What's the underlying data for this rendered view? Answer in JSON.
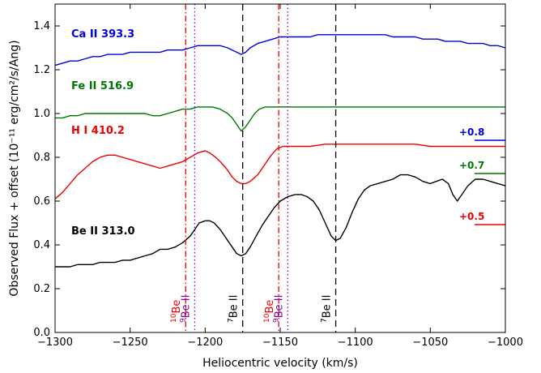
{
  "chart_data": {
    "type": "line",
    "xlabel": "Heliocentric velocity (km/s)",
    "ylabel": "Observed Flux + offset (10⁻¹¹ erg/cm²/s/Ang)",
    "xlim": [
      -1300,
      -1000
    ],
    "ylim": [
      0.0,
      1.5
    ],
    "x_ticks": [
      -1300,
      -1250,
      -1200,
      -1150,
      -1100,
      -1050,
      -1000
    ],
    "x_tick_labels": [
      "−1300",
      "−1250",
      "−1200",
      "−1150",
      "−1100",
      "−1050",
      "−1000"
    ],
    "y_ticks": [
      0.0,
      0.2,
      0.4,
      0.6,
      0.8,
      1.0,
      1.2,
      1.4
    ],
    "y_tick_labels": [
      "0.0",
      "0.2",
      "0.4",
      "0.6",
      "0.8",
      "1.0",
      "1.2",
      "1.4"
    ],
    "grid": false,
    "series": [
      {
        "name": "Ca II 393.3",
        "color": "#0000dd",
        "offset_label": "+0.8",
        "points": [
          [
            -1300,
            1.22
          ],
          [
            -1295,
            1.23
          ],
          [
            -1290,
            1.24
          ],
          [
            -1285,
            1.24
          ],
          [
            -1280,
            1.25
          ],
          [
            -1275,
            1.26
          ],
          [
            -1270,
            1.26
          ],
          [
            -1265,
            1.27
          ],
          [
            -1260,
            1.27
          ],
          [
            -1255,
            1.27
          ],
          [
            -1250,
            1.28
          ],
          [
            -1245,
            1.28
          ],
          [
            -1240,
            1.28
          ],
          [
            -1235,
            1.28
          ],
          [
            -1230,
            1.28
          ],
          [
            -1225,
            1.29
          ],
          [
            -1220,
            1.29
          ],
          [
            -1215,
            1.29
          ],
          [
            -1210,
            1.3
          ],
          [
            -1205,
            1.31
          ],
          [
            -1200,
            1.31
          ],
          [
            -1195,
            1.31
          ],
          [
            -1190,
            1.31
          ],
          [
            -1185,
            1.3
          ],
          [
            -1182,
            1.29
          ],
          [
            -1179,
            1.28
          ],
          [
            -1176,
            1.27
          ],
          [
            -1173,
            1.28
          ],
          [
            -1170,
            1.3
          ],
          [
            -1165,
            1.32
          ],
          [
            -1160,
            1.33
          ],
          [
            -1155,
            1.34
          ],
          [
            -1150,
            1.35
          ],
          [
            -1145,
            1.35
          ],
          [
            -1140,
            1.35
          ],
          [
            -1135,
            1.35
          ],
          [
            -1130,
            1.35
          ],
          [
            -1125,
            1.36
          ],
          [
            -1120,
            1.36
          ],
          [
            -1115,
            1.36
          ],
          [
            -1110,
            1.36
          ],
          [
            -1105,
            1.36
          ],
          [
            -1100,
            1.36
          ],
          [
            -1095,
            1.36
          ],
          [
            -1090,
            1.36
          ],
          [
            -1085,
            1.36
          ],
          [
            -1080,
            1.36
          ],
          [
            -1075,
            1.35
          ],
          [
            -1070,
            1.35
          ],
          [
            -1065,
            1.35
          ],
          [
            -1060,
            1.35
          ],
          [
            -1055,
            1.34
          ],
          [
            -1050,
            1.34
          ],
          [
            -1045,
            1.34
          ],
          [
            -1040,
            1.33
          ],
          [
            -1035,
            1.33
          ],
          [
            -1030,
            1.33
          ],
          [
            -1025,
            1.32
          ],
          [
            -1020,
            1.32
          ],
          [
            -1015,
            1.32
          ],
          [
            -1010,
            1.31
          ],
          [
            -1005,
            1.31
          ],
          [
            -1000,
            1.3
          ]
        ]
      },
      {
        "name": "Fe II 516.9",
        "color": "#007700",
        "offset_label": "+0.7",
        "points": [
          [
            -1300,
            0.98
          ],
          [
            -1295,
            0.98
          ],
          [
            -1290,
            0.99
          ],
          [
            -1285,
            0.99
          ],
          [
            -1280,
            1.0
          ],
          [
            -1275,
            1.0
          ],
          [
            -1270,
            1.0
          ],
          [
            -1265,
            1.0
          ],
          [
            -1260,
            1.0
          ],
          [
            -1255,
            1.0
          ],
          [
            -1250,
            1.0
          ],
          [
            -1245,
            1.0
          ],
          [
            -1240,
            1.0
          ],
          [
            -1235,
            0.99
          ],
          [
            -1230,
            0.99
          ],
          [
            -1225,
            1.0
          ],
          [
            -1220,
            1.01
          ],
          [
            -1215,
            1.02
          ],
          [
            -1210,
            1.02
          ],
          [
            -1205,
            1.03
          ],
          [
            -1200,
            1.03
          ],
          [
            -1195,
            1.03
          ],
          [
            -1190,
            1.02
          ],
          [
            -1185,
            1.0
          ],
          [
            -1182,
            0.98
          ],
          [
            -1179,
            0.95
          ],
          [
            -1176,
            0.92
          ],
          [
            -1173,
            0.94
          ],
          [
            -1170,
            0.97
          ],
          [
            -1167,
            1.0
          ],
          [
            -1164,
            1.02
          ],
          [
            -1160,
            1.03
          ],
          [
            -1155,
            1.03
          ],
          [
            -1150,
            1.03
          ],
          [
            -1140,
            1.03
          ],
          [
            -1130,
            1.03
          ],
          [
            -1120,
            1.03
          ],
          [
            -1110,
            1.03
          ],
          [
            -1100,
            1.03
          ],
          [
            -1090,
            1.03
          ],
          [
            -1080,
            1.03
          ],
          [
            -1070,
            1.03
          ],
          [
            -1060,
            1.03
          ],
          [
            -1050,
            1.03
          ],
          [
            -1040,
            1.03
          ],
          [
            -1030,
            1.03
          ],
          [
            -1020,
            1.03
          ],
          [
            -1010,
            1.03
          ],
          [
            -1000,
            1.03
          ]
        ]
      },
      {
        "name": "H I 410.2",
        "color": "#ee0000",
        "offset_label": "+0.5",
        "points": [
          [
            -1300,
            0.61
          ],
          [
            -1295,
            0.64
          ],
          [
            -1290,
            0.68
          ],
          [
            -1285,
            0.72
          ],
          [
            -1280,
            0.75
          ],
          [
            -1275,
            0.78
          ],
          [
            -1270,
            0.8
          ],
          [
            -1265,
            0.81
          ],
          [
            -1260,
            0.81
          ],
          [
            -1255,
            0.8
          ],
          [
            -1250,
            0.79
          ],
          [
            -1245,
            0.78
          ],
          [
            -1240,
            0.77
          ],
          [
            -1235,
            0.76
          ],
          [
            -1230,
            0.75
          ],
          [
            -1225,
            0.76
          ],
          [
            -1220,
            0.77
          ],
          [
            -1215,
            0.78
          ],
          [
            -1210,
            0.8
          ],
          [
            -1205,
            0.82
          ],
          [
            -1200,
            0.83
          ],
          [
            -1197,
            0.82
          ],
          [
            -1193,
            0.8
          ],
          [
            -1190,
            0.78
          ],
          [
            -1186,
            0.75
          ],
          [
            -1182,
            0.71
          ],
          [
            -1179,
            0.69
          ],
          [
            -1176,
            0.68
          ],
          [
            -1173,
            0.68
          ],
          [
            -1170,
            0.69
          ],
          [
            -1165,
            0.72
          ],
          [
            -1160,
            0.77
          ],
          [
            -1156,
            0.81
          ],
          [
            -1152,
            0.84
          ],
          [
            -1148,
            0.85
          ],
          [
            -1140,
            0.85
          ],
          [
            -1130,
            0.85
          ],
          [
            -1120,
            0.86
          ],
          [
            -1110,
            0.86
          ],
          [
            -1100,
            0.86
          ],
          [
            -1090,
            0.86
          ],
          [
            -1080,
            0.86
          ],
          [
            -1070,
            0.86
          ],
          [
            -1060,
            0.86
          ],
          [
            -1050,
            0.85
          ],
          [
            -1040,
            0.85
          ],
          [
            -1030,
            0.85
          ],
          [
            -1020,
            0.85
          ],
          [
            -1010,
            0.85
          ],
          [
            -1000,
            0.85
          ]
        ]
      },
      {
        "name": "Be II 313.0",
        "color": "#000000",
        "offset_label": "",
        "points": [
          [
            -1300,
            0.3
          ],
          [
            -1295,
            0.3
          ],
          [
            -1290,
            0.3
          ],
          [
            -1285,
            0.31
          ],
          [
            -1280,
            0.31
          ],
          [
            -1275,
            0.31
          ],
          [
            -1270,
            0.32
          ],
          [
            -1265,
            0.32
          ],
          [
            -1260,
            0.32
          ],
          [
            -1255,
            0.33
          ],
          [
            -1250,
            0.33
          ],
          [
            -1245,
            0.34
          ],
          [
            -1240,
            0.35
          ],
          [
            -1235,
            0.36
          ],
          [
            -1230,
            0.38
          ],
          [
            -1225,
            0.38
          ],
          [
            -1220,
            0.39
          ],
          [
            -1215,
            0.41
          ],
          [
            -1210,
            0.44
          ],
          [
            -1207,
            0.47
          ],
          [
            -1204,
            0.5
          ],
          [
            -1200,
            0.51
          ],
          [
            -1197,
            0.51
          ],
          [
            -1194,
            0.5
          ],
          [
            -1190,
            0.47
          ],
          [
            -1186,
            0.43
          ],
          [
            -1182,
            0.39
          ],
          [
            -1179,
            0.36
          ],
          [
            -1176,
            0.35
          ],
          [
            -1173,
            0.36
          ],
          [
            -1170,
            0.39
          ],
          [
            -1166,
            0.44
          ],
          [
            -1162,
            0.49
          ],
          [
            -1158,
            0.53
          ],
          [
            -1154,
            0.57
          ],
          [
            -1150,
            0.6
          ],
          [
            -1145,
            0.62
          ],
          [
            -1140,
            0.63
          ],
          [
            -1136,
            0.63
          ],
          [
            -1132,
            0.62
          ],
          [
            -1128,
            0.6
          ],
          [
            -1124,
            0.56
          ],
          [
            -1120,
            0.5
          ],
          [
            -1116,
            0.44
          ],
          [
            -1113,
            0.42
          ],
          [
            -1110,
            0.43
          ],
          [
            -1106,
            0.48
          ],
          [
            -1102,
            0.55
          ],
          [
            -1098,
            0.61
          ],
          [
            -1094,
            0.65
          ],
          [
            -1090,
            0.67
          ],
          [
            -1085,
            0.68
          ],
          [
            -1080,
            0.69
          ],
          [
            -1075,
            0.7
          ],
          [
            -1070,
            0.72
          ],
          [
            -1065,
            0.72
          ],
          [
            -1060,
            0.71
          ],
          [
            -1055,
            0.69
          ],
          [
            -1050,
            0.68
          ],
          [
            -1046,
            0.69
          ],
          [
            -1042,
            0.7
          ],
          [
            -1038,
            0.68
          ],
          [
            -1035,
            0.63
          ],
          [
            -1032,
            0.6
          ],
          [
            -1029,
            0.63
          ],
          [
            -1025,
            0.67
          ],
          [
            -1020,
            0.7
          ],
          [
            -1015,
            0.7
          ],
          [
            -1010,
            0.69
          ],
          [
            -1005,
            0.68
          ],
          [
            -1000,
            0.67
          ]
        ]
      }
    ],
    "vertical_lines": [
      {
        "x": -1213,
        "style": "dashdot",
        "color": "#ee0000",
        "label_prefix": "10",
        "label_text": "Be",
        "label_color": "#ee0000"
      },
      {
        "x": -1207,
        "style": "dotted",
        "color": "#8800cc",
        "label_prefix": "9",
        "label_text": "Be II",
        "label_color": "#880099"
      },
      {
        "x": -1175,
        "style": "dashed",
        "color": "#000000",
        "label_prefix": "7",
        "label_text": "Be II",
        "label_color": "#000000"
      },
      {
        "x": -1151,
        "style": "dashdot",
        "color": "#ee0000",
        "label_prefix": "10",
        "label_text": "Be",
        "label_color": "#ee0000"
      },
      {
        "x": -1145,
        "style": "dotted",
        "color": "#8800cc",
        "label_prefix": "9",
        "label_text": "Be II",
        "label_color": "#880099"
      },
      {
        "x": -1113,
        "style": "dashed",
        "color": "#000000",
        "label_prefix": "7",
        "label_text": "Be II",
        "label_color": "#000000"
      }
    ]
  }
}
